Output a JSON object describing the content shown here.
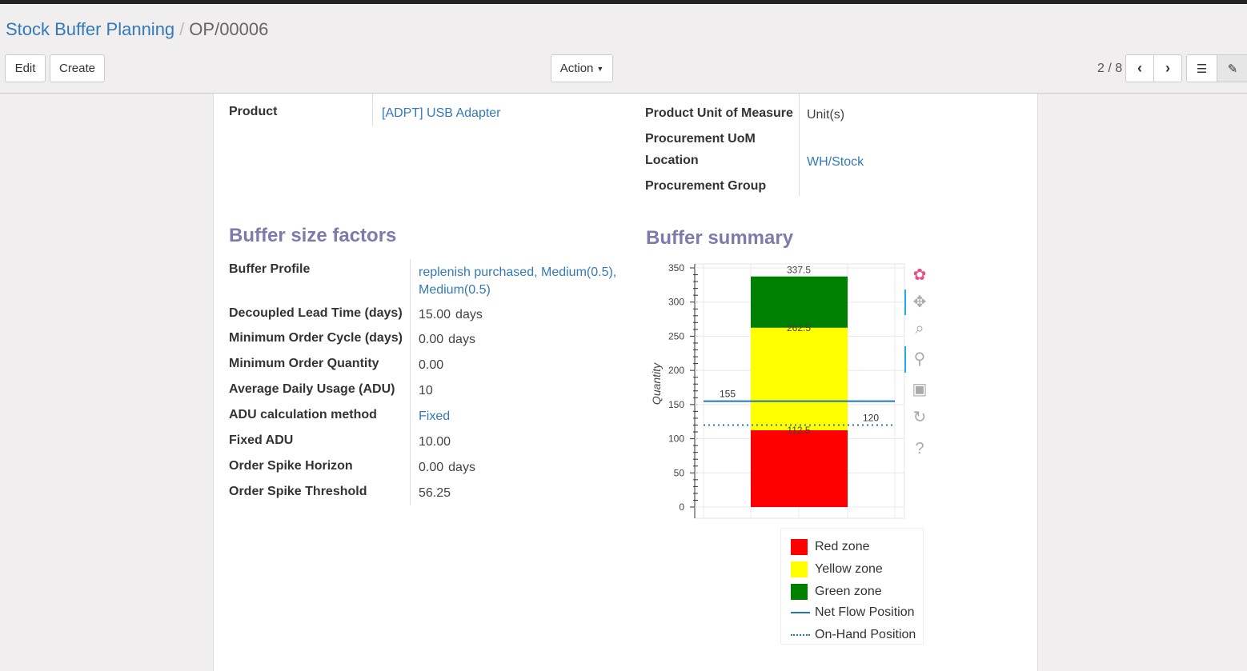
{
  "breadcrumb": {
    "parent": "Stock Buffer Planning",
    "current": "OP/00006"
  },
  "buttons": {
    "edit": "Edit",
    "create": "Create",
    "action": "Action"
  },
  "pager": {
    "value": "2 / 8"
  },
  "fields_top": {
    "product_label": "Product",
    "product_value": "[ADPT] USB Adapter",
    "uom_label": "Product Unit of Measure",
    "uom_value": "Unit(s)",
    "proc_uom_label": "Procurement UoM",
    "location_label": "Location",
    "location_value": "WH/Stock",
    "proc_group_label": "Procurement Group"
  },
  "factors": {
    "title": "Buffer size factors",
    "rows": [
      {
        "label": "Buffer Profile",
        "value": "replenish purchased, Medium(0.5), Medium(0.5)",
        "link": true
      },
      {
        "label": "Decoupled Lead Time (days)",
        "value": "15.00",
        "unit": "days"
      },
      {
        "label": "Minimum Order Cycle (days)",
        "value": "0.00",
        "unit": "days"
      },
      {
        "label": "Minimum Order Quantity",
        "value": "0.00"
      },
      {
        "label": "Average Daily Usage (ADU)",
        "value": "10"
      },
      {
        "label": "ADU calculation method",
        "value": "Fixed",
        "link": true
      },
      {
        "label": "Fixed ADU",
        "value": "10.00"
      },
      {
        "label": "Order Spike Horizon",
        "value": "0.00",
        "unit": "days"
      },
      {
        "label": "Order Spike Threshold",
        "value": "56.25"
      }
    ]
  },
  "summary": {
    "title": "Buffer summary"
  },
  "chart_data": {
    "type": "bar",
    "ylabel": "Quantity",
    "ylim": [
      0,
      350
    ],
    "yticks": [
      0,
      50,
      100,
      150,
      200,
      250,
      300,
      350
    ],
    "grid": true,
    "stacked_zones": [
      {
        "name": "Red zone",
        "from": 0,
        "to": 112.5,
        "color": "#ff0000"
      },
      {
        "name": "Yellow zone",
        "from": 112.5,
        "to": 262.5,
        "color": "#ffff00"
      },
      {
        "name": "Green zone",
        "from": 262.5,
        "to": 337.5,
        "color": "#008000"
      }
    ],
    "zone_labels": [
      "112.5",
      "262.5",
      "337.5"
    ],
    "lines": [
      {
        "name": "Net Flow Position",
        "value": 155,
        "label": "155",
        "style": "solid",
        "color": "#1f77b4"
      },
      {
        "name": "On-Hand Position",
        "value": 120,
        "label": "120",
        "style": "dotted",
        "color": "#1f77b4"
      }
    ],
    "legend": [
      "Red zone",
      "Yellow zone",
      "Green zone",
      "Net Flow Position",
      "On-Hand Position"
    ],
    "legend_placement": "bottom-right"
  },
  "toolbar_icons": [
    "bokeh-logo-icon",
    "pan-icon",
    "box-zoom-icon",
    "wheel-zoom-icon",
    "save-icon",
    "reset-icon",
    "help-icon"
  ]
}
